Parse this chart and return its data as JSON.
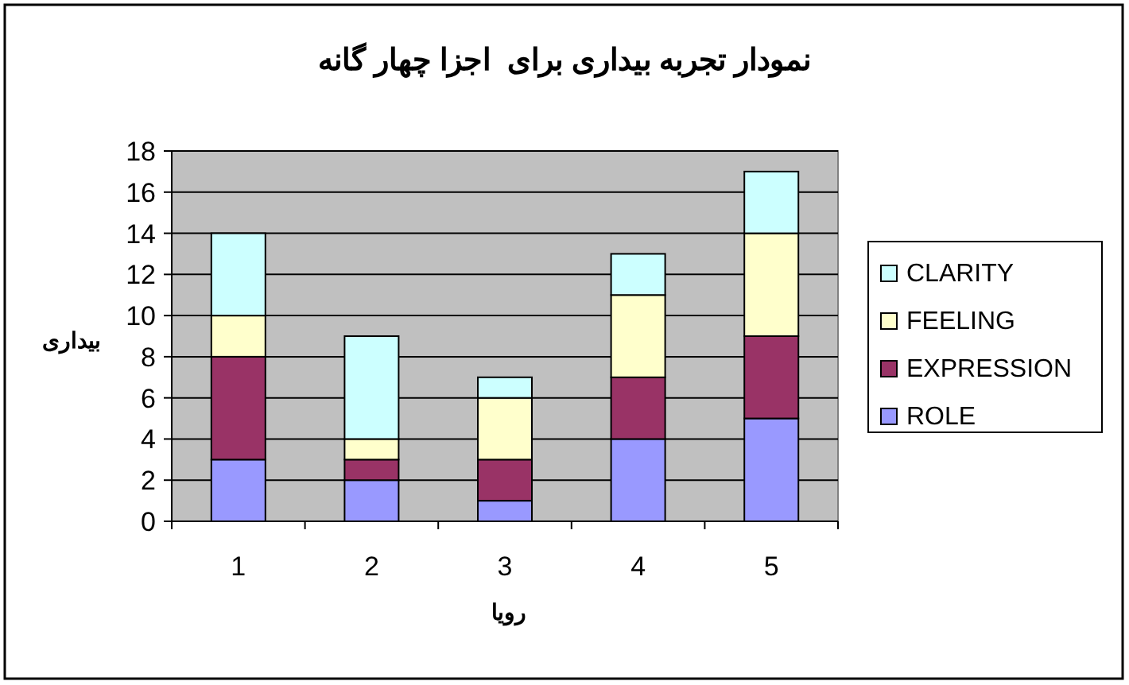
{
  "chart_data": {
    "type": "bar",
    "stacked": true,
    "title": "نمودار تجربه بیداری برای  اجزا چهار گانه",
    "xlabel": "رویا",
    "ylabel": "بیداری",
    "categories": [
      "1",
      "2",
      "3",
      "4",
      "5"
    ],
    "series": [
      {
        "name": "ROLE",
        "color": "#9999ff",
        "values": [
          3,
          2,
          1,
          4,
          5
        ]
      },
      {
        "name": "EXPRESSION",
        "color": "#993366",
        "values": [
          5,
          1,
          2,
          3,
          4
        ]
      },
      {
        "name": "FEELING",
        "color": "#ffffcc",
        "values": [
          2,
          1,
          3,
          4,
          5
        ]
      },
      {
        "name": "CLARITY",
        "color": "#ccffff",
        "values": [
          4,
          5,
          1,
          2,
          3
        ]
      }
    ],
    "ylim": [
      0,
      18
    ],
    "yticks": [
      0,
      2,
      4,
      6,
      8,
      10,
      12,
      14,
      16,
      18
    ],
    "grid": "y",
    "legend": "right"
  }
}
